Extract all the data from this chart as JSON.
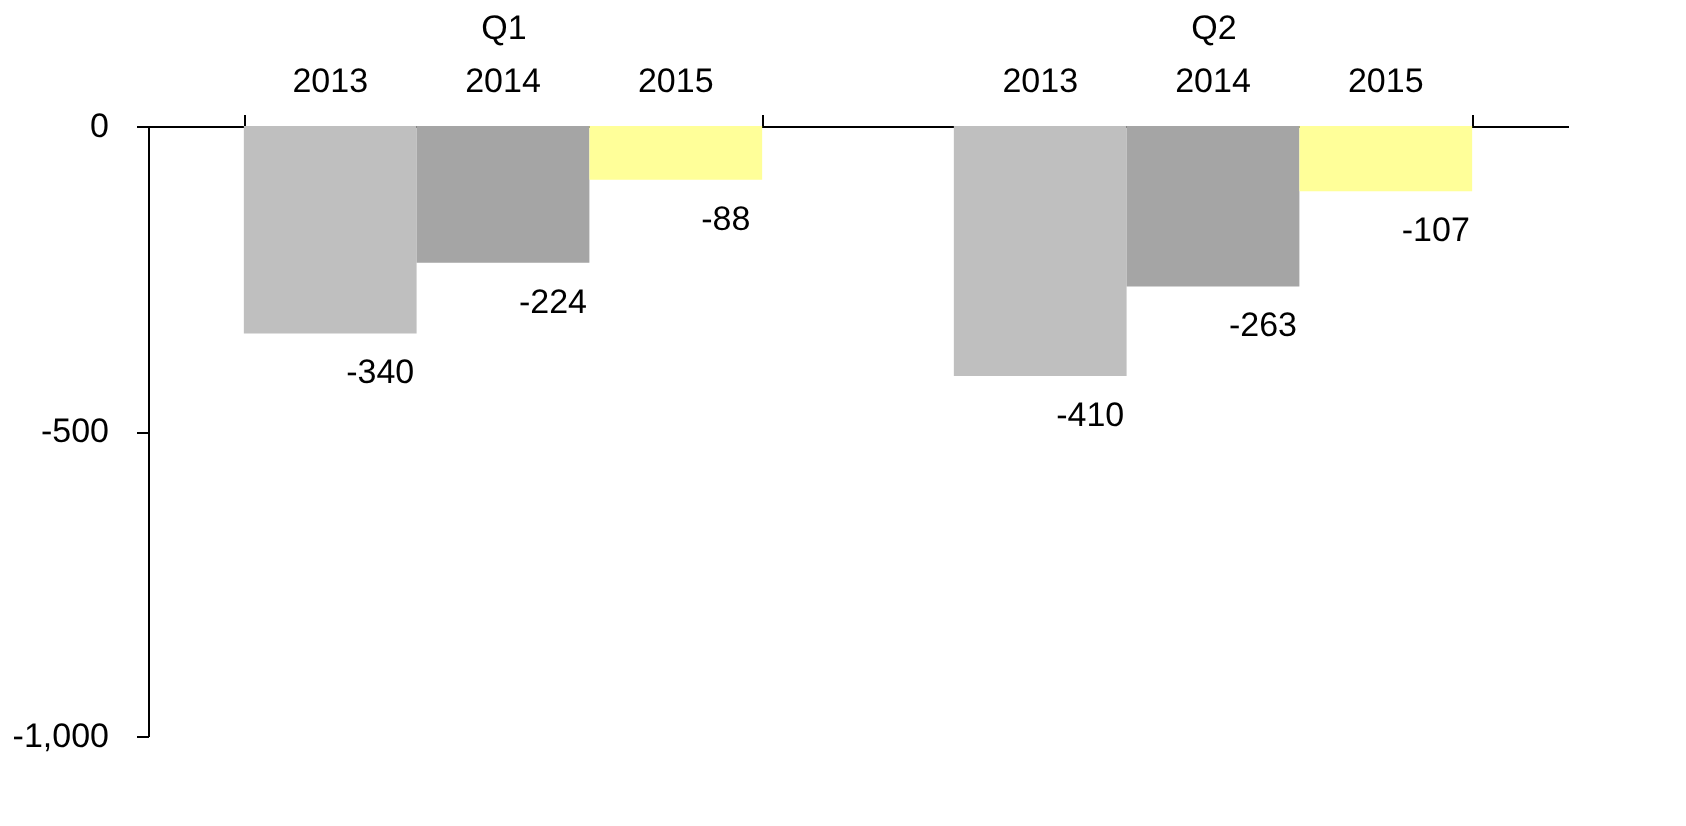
{
  "chart_data": {
    "type": "bar",
    "categories": [
      "Q1",
      "Q2"
    ],
    "series": [
      {
        "name": "2013",
        "color": "#bfbfbf",
        "values": [
          -340,
          -410
        ]
      },
      {
        "name": "2014",
        "color": "#a5a5a5",
        "values": [
          -224,
          -263
        ]
      },
      {
        "name": "2015",
        "color": "#ffff99",
        "values": [
          -88,
          -107
        ]
      }
    ],
    "ylim": [
      -1000,
      0
    ],
    "yticks": [
      0,
      {
        "value": -500,
        "label": "-500"
      },
      {
        "value": -1000,
        "label": "-1,000"
      }
    ],
    "data_labels": true,
    "grid": false
  }
}
